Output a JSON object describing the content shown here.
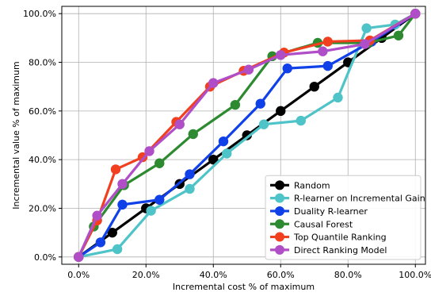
{
  "chart_data": {
    "type": "line",
    "xlabel": "Incremental cost % of maximum",
    "ylabel": "Incremental value % of maximum",
    "xlim": [
      -5,
      103
    ],
    "ylim": [
      -3,
      103
    ],
    "x_ticks": [
      0,
      20,
      40,
      60,
      80,
      100
    ],
    "y_ticks": [
      0,
      20,
      40,
      60,
      80,
      100
    ],
    "x_tick_labels": [
      "0.0%",
      "20.0%",
      "40.0%",
      "60.0%",
      "80.0%",
      "100.0%"
    ],
    "y_tick_labels": [
      "0.0%",
      "20.0%",
      "40.0%",
      "60.0%",
      "80.0%",
      "100.0%"
    ],
    "grid": true,
    "legend_position": "bottom-right",
    "series": [
      {
        "name": "Random",
        "color": "#000000",
        "x": [
          0,
          10,
          20,
          30,
          40,
          50,
          60,
          70,
          80,
          90,
          100
        ],
        "y": [
          0,
          10,
          20,
          30,
          40,
          50,
          60,
          70,
          80,
          90,
          100
        ]
      },
      {
        "name": "R-learner on Incremental Gain",
        "color": "#4fc4c8",
        "x": [
          0,
          11.5,
          21.5,
          33,
          44,
          55,
          66,
          77,
          85.5,
          94,
          100
        ],
        "y": [
          0,
          3.2,
          19,
          28,
          42.5,
          54.5,
          56,
          65.5,
          94,
          95.5,
          100
        ]
      },
      {
        "name": "Duality R-learner",
        "color": "#1040e8",
        "x": [
          0,
          6.5,
          13,
          24,
          33,
          43,
          54,
          62,
          74,
          87,
          100
        ],
        "y": [
          0,
          6,
          21.5,
          23.5,
          34,
          47.5,
          63,
          77.5,
          78.5,
          88.5,
          100
        ]
      },
      {
        "name": "Causal Forest",
        "color": "#2e8a30",
        "x": [
          0,
          4.5,
          13.5,
          24,
          34,
          46.5,
          57.5,
          71,
          86,
          95,
          100
        ],
        "y": [
          0,
          12.5,
          29.5,
          38.5,
          50.5,
          62.5,
          82.5,
          88,
          88,
          91,
          100
        ]
      },
      {
        "name": "Top Quantile Ranking",
        "color": "#f04020",
        "x": [
          0,
          5.5,
          11,
          19,
          29,
          39,
          49,
          61,
          74,
          86.5,
          100
        ],
        "y": [
          0,
          15,
          36,
          41,
          55.5,
          70,
          76.5,
          84,
          88.5,
          89,
          100
        ]
      },
      {
        "name": "Direct Ranking Model",
        "color": "#b04ec8",
        "x": [
          0,
          5.5,
          13,
          21,
          30,
          40,
          50.5,
          60,
          72.5,
          85,
          100
        ],
        "y": [
          0,
          17,
          30,
          43.5,
          54.5,
          71.5,
          77,
          83,
          84.5,
          87.5,
          100
        ]
      }
    ]
  }
}
